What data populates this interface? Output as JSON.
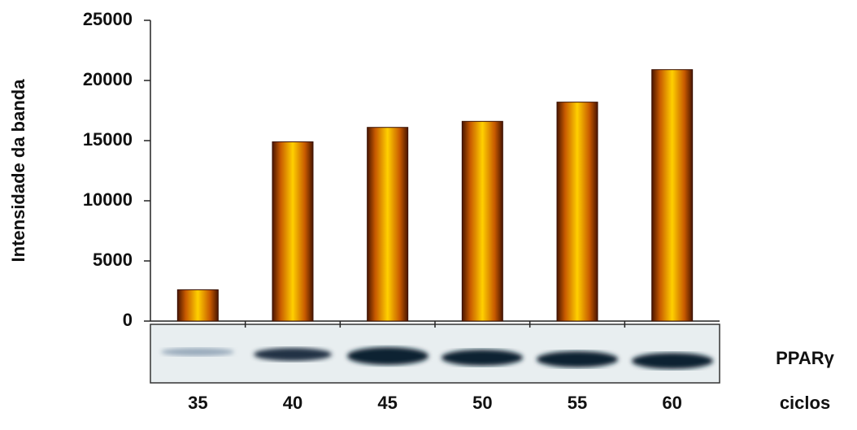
{
  "chart_data": {
    "type": "bar",
    "y_label": "Intensidade da banda",
    "x_label": "ciclos",
    "annotation": "PPARγ",
    "categories": [
      "35",
      "40",
      "45",
      "50",
      "55",
      "60"
    ],
    "values": [
      2600,
      14900,
      16100,
      16600,
      18200,
      20900
    ],
    "color": "#f5a000",
    "ylim": [
      0,
      25000
    ],
    "yticks": [
      0,
      5000,
      10000,
      15000,
      20000,
      25000
    ],
    "grid": false
  }
}
